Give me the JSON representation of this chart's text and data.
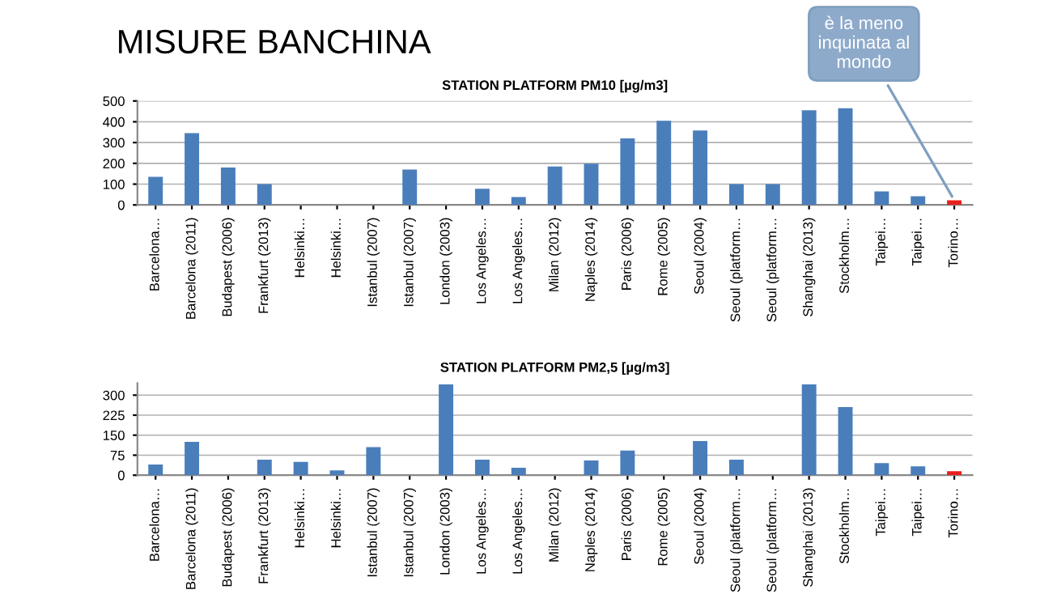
{
  "chart_data": [
    {
      "type": "bar",
      "title": "STATION PLATFORM PM10 [µg/m3]",
      "categories": [
        "Barcelona…",
        "Barcelona (2011)",
        "Budapest (2006)",
        "Frankfurt (2013)",
        "Helsinki…",
        "Helsinki…",
        "Istanbul (2007)",
        "Istanbul (2007)",
        "London (2003)",
        "Los Angeles…",
        "Los Angeles…",
        "Milan (2012)",
        "Naples (2014)",
        "Paris (2006)",
        "Rome (2005)",
        "Seoul (2004)",
        "Seoul (platform…",
        "Seoul (platform…",
        "Shanghai (2013)",
        "Stockholm…",
        "Taipei…",
        "Taipei…",
        "Torino…"
      ],
      "values": [
        135,
        345,
        180,
        100,
        null,
        null,
        null,
        170,
        null,
        78,
        38,
        185,
        198,
        320,
        405,
        358,
        100,
        100,
        455,
        465,
        65,
        42,
        22
      ],
      "colors": [
        "#4a7ebb",
        "#4a7ebb",
        "#4a7ebb",
        "#4a7ebb",
        "#4a7ebb",
        "#4a7ebb",
        "#4a7ebb",
        "#4a7ebb",
        "#4a7ebb",
        "#4a7ebb",
        "#4a7ebb",
        "#4a7ebb",
        "#4a7ebb",
        "#4a7ebb",
        "#4a7ebb",
        "#4a7ebb",
        "#4a7ebb",
        "#4a7ebb",
        "#4a7ebb",
        "#4a7ebb",
        "#4a7ebb",
        "#4a7ebb",
        "#e8201c"
      ],
      "ylim": [
        0,
        500
      ],
      "yticks": [
        0,
        100,
        200,
        300,
        400,
        500
      ],
      "grid": "y",
      "annotations": [
        "MISURE BANCHINA",
        {
          "text": "è la meno\ninquinata al\nmondo",
          "x": "Torino…",
          "y": 22
        }
      ]
    },
    {
      "type": "bar",
      "title": "STATION PLATFORM PM2,5 [µg/m3]",
      "categories": [
        "Barcelona…",
        "Barcelona (2011)",
        "Budapest (2006)",
        "Frankfurt (2013)",
        "Helsinki…",
        "Helsinki…",
        "Istanbul (2007)",
        "Istanbul (2007)",
        "London (2003)",
        "Los Angeles…",
        "Los Angeles…",
        "Milan (2012)",
        "Naples (2014)",
        "Paris (2006)",
        "Rome (2005)",
        "Seoul (2004)",
        "Seoul (platform…",
        "Seoul (platform…",
        "Shanghai (2013)",
        "Stockholm…",
        "Taipei…",
        "Taipei…",
        "Torino…"
      ],
      "values": [
        40,
        125,
        null,
        58,
        50,
        18,
        105,
        null,
        340,
        58,
        28,
        null,
        55,
        92,
        null,
        128,
        58,
        null,
        340,
        255,
        45,
        33,
        15
      ],
      "colors": [
        "#4a7ebb",
        "#4a7ebb",
        "#4a7ebb",
        "#4a7ebb",
        "#4a7ebb",
        "#4a7ebb",
        "#4a7ebb",
        "#4a7ebb",
        "#4a7ebb",
        "#4a7ebb",
        "#4a7ebb",
        "#4a7ebb",
        "#4a7ebb",
        "#4a7ebb",
        "#4a7ebb",
        "#4a7ebb",
        "#4a7ebb",
        "#4a7ebb",
        "#4a7ebb",
        "#4a7ebb",
        "#4a7ebb",
        "#4a7ebb",
        "#e8201c"
      ],
      "ylim": [
        0,
        345
      ],
      "yticks": [
        0,
        75,
        150,
        225,
        300
      ],
      "grid": "y"
    }
  ]
}
